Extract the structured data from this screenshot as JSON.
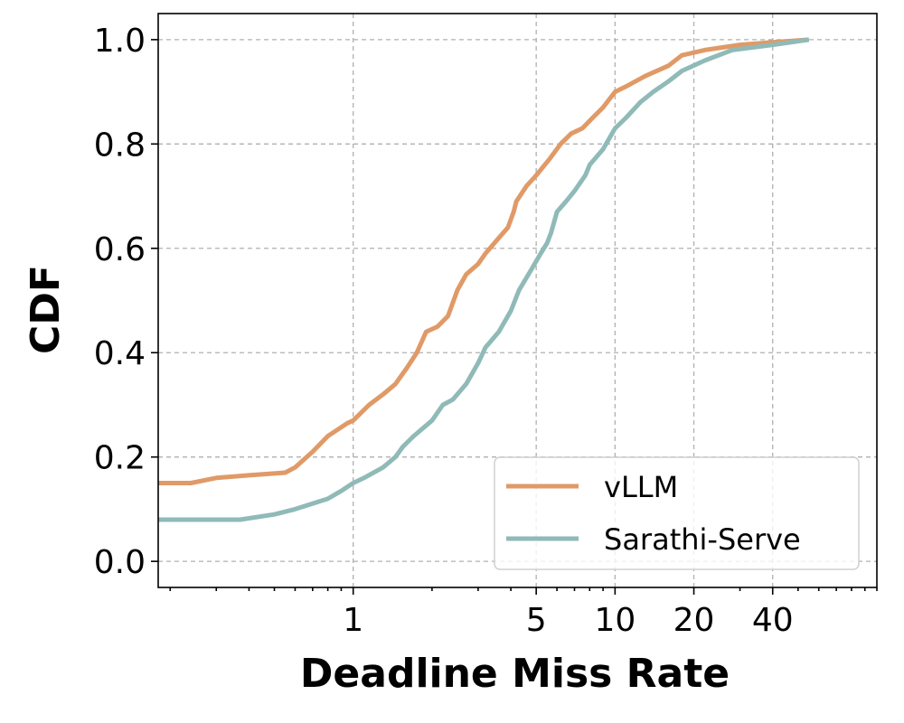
{
  "chart_data": {
    "type": "line",
    "xlabel": "Deadline Miss Rate",
    "ylabel": "CDF",
    "xscale": "log",
    "xlim": [
      0.18,
      100
    ],
    "ylim": [
      -0.05,
      1.05
    ],
    "grid": true,
    "legend_position": "lower-right",
    "x_ticks": [
      {
        "value": 1,
        "label": "1"
      },
      {
        "value": 5,
        "label": "5"
      },
      {
        "value": 10,
        "label": "10"
      },
      {
        "value": 20,
        "label": "20"
      },
      {
        "value": 40,
        "label": "40"
      }
    ],
    "y_ticks": [
      {
        "value": 0.0,
        "label": "0.0"
      },
      {
        "value": 0.2,
        "label": "0.2"
      },
      {
        "value": 0.4,
        "label": "0.4"
      },
      {
        "value": 0.6,
        "label": "0.6"
      },
      {
        "value": 0.8,
        "label": "0.8"
      },
      {
        "value": 1.0,
        "label": "1.0"
      }
    ],
    "series": [
      {
        "name": "vLLM",
        "color": "#E09A67",
        "points": [
          [
            0.18,
            0.15
          ],
          [
            0.24,
            0.15
          ],
          [
            0.3,
            0.16
          ],
          [
            0.4,
            0.165
          ],
          [
            0.55,
            0.17
          ],
          [
            0.6,
            0.18
          ],
          [
            0.7,
            0.21
          ],
          [
            0.8,
            0.24
          ],
          [
            0.95,
            0.265
          ],
          [
            1.0,
            0.27
          ],
          [
            1.15,
            0.3
          ],
          [
            1.3,
            0.32
          ],
          [
            1.45,
            0.34
          ],
          [
            1.6,
            0.37
          ],
          [
            1.75,
            0.4
          ],
          [
            1.9,
            0.44
          ],
          [
            2.1,
            0.45
          ],
          [
            2.3,
            0.47
          ],
          [
            2.5,
            0.52
          ],
          [
            2.7,
            0.55
          ],
          [
            3.0,
            0.57
          ],
          [
            3.2,
            0.59
          ],
          [
            3.6,
            0.62
          ],
          [
            3.9,
            0.64
          ],
          [
            4.1,
            0.67
          ],
          [
            4.2,
            0.69
          ],
          [
            4.6,
            0.72
          ],
          [
            5.0,
            0.74
          ],
          [
            5.6,
            0.77
          ],
          [
            6.2,
            0.8
          ],
          [
            6.8,
            0.82
          ],
          [
            7.5,
            0.83
          ],
          [
            8.2,
            0.85
          ],
          [
            9.0,
            0.87
          ],
          [
            10.0,
            0.9
          ],
          [
            11.0,
            0.91
          ],
          [
            13.0,
            0.93
          ],
          [
            16.0,
            0.95
          ],
          [
            18.0,
            0.97
          ],
          [
            22.0,
            0.98
          ],
          [
            30.0,
            0.99
          ],
          [
            40.0,
            0.995
          ],
          [
            55.0,
            1.0
          ]
        ]
      },
      {
        "name": "Sarathi-Serve",
        "color": "#8FBAB8",
        "points": [
          [
            0.18,
            0.08
          ],
          [
            0.35,
            0.08
          ],
          [
            0.37,
            0.08
          ],
          [
            0.5,
            0.09
          ],
          [
            0.6,
            0.1
          ],
          [
            0.8,
            0.12
          ],
          [
            0.9,
            0.135
          ],
          [
            1.0,
            0.15
          ],
          [
            1.1,
            0.16
          ],
          [
            1.3,
            0.18
          ],
          [
            1.45,
            0.2
          ],
          [
            1.55,
            0.22
          ],
          [
            1.7,
            0.24
          ],
          [
            2.0,
            0.27
          ],
          [
            2.2,
            0.3
          ],
          [
            2.4,
            0.31
          ],
          [
            2.7,
            0.34
          ],
          [
            3.0,
            0.38
          ],
          [
            3.2,
            0.41
          ],
          [
            3.6,
            0.44
          ],
          [
            4.0,
            0.48
          ],
          [
            4.3,
            0.52
          ],
          [
            4.8,
            0.56
          ],
          [
            5.2,
            0.59
          ],
          [
            5.5,
            0.61
          ],
          [
            5.7,
            0.63
          ],
          [
            6.0,
            0.67
          ],
          [
            6.5,
            0.69
          ],
          [
            7.0,
            0.71
          ],
          [
            7.7,
            0.74
          ],
          [
            8.0,
            0.76
          ],
          [
            9.0,
            0.79
          ],
          [
            10.0,
            0.83
          ],
          [
            11.0,
            0.85
          ],
          [
            12.5,
            0.88
          ],
          [
            14.0,
            0.9
          ],
          [
            16.0,
            0.92
          ],
          [
            18.0,
            0.94
          ],
          [
            22.0,
            0.96
          ],
          [
            28.0,
            0.98
          ],
          [
            40.0,
            0.99
          ],
          [
            55.0,
            1.0
          ]
        ]
      }
    ]
  }
}
